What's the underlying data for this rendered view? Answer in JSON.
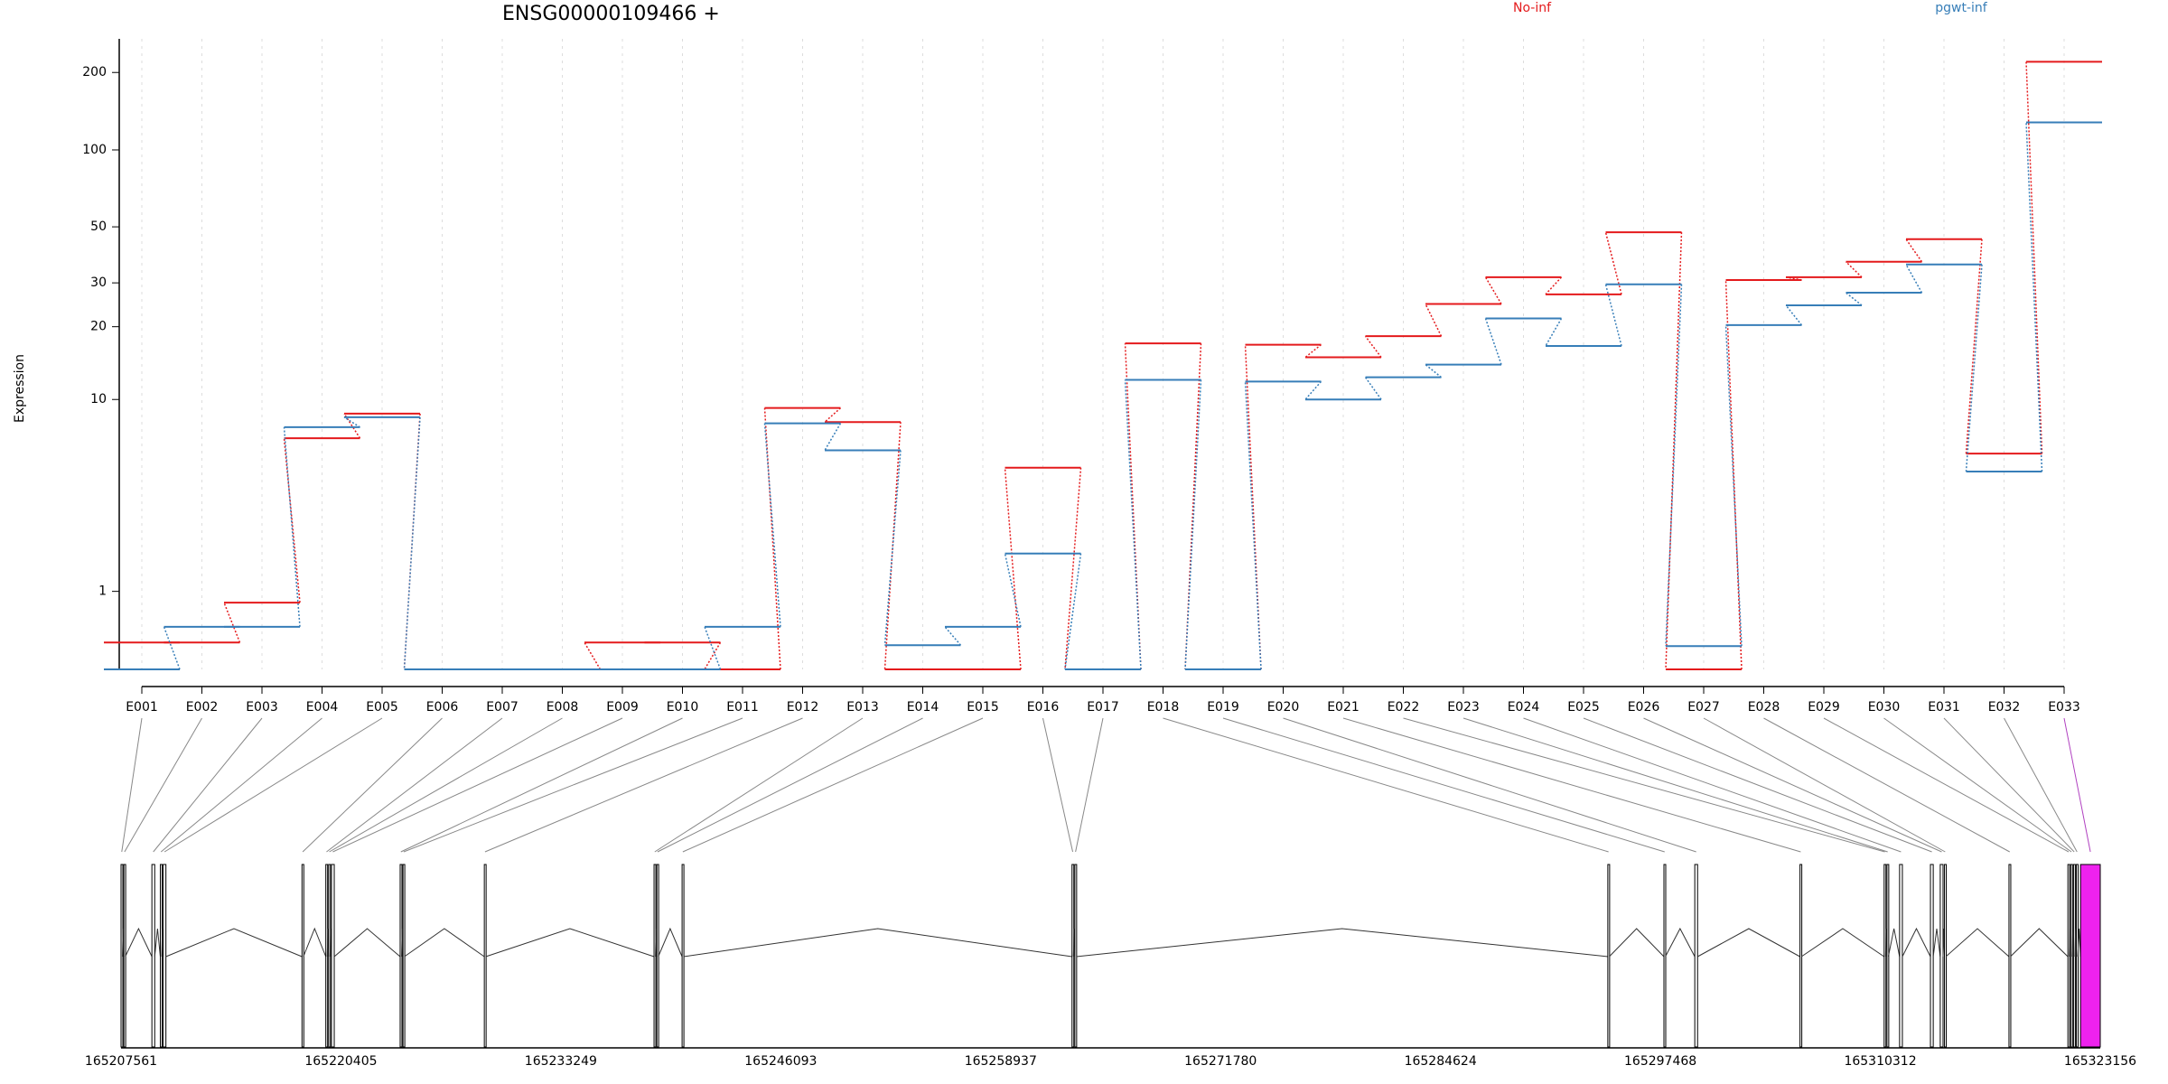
{
  "chart_data": {
    "type": "line",
    "title": "ENSG00000109466 +",
    "y_label": "Expression",
    "yscale": "log1p",
    "categories": [
      "E001",
      "E002",
      "E003",
      "E004",
      "E005",
      "E006",
      "E007",
      "E008",
      "E009",
      "E010",
      "E011",
      "E012",
      "E013",
      "E014",
      "E015",
      "E016",
      "E017",
      "E018",
      "E019",
      "E020",
      "E021",
      "E022",
      "E023",
      "E024",
      "E025",
      "E026",
      "E027",
      "E028",
      "E029",
      "E030",
      "E031",
      "E032",
      "E033"
    ],
    "series": [
      {
        "name": "No-inf",
        "color": "#e41a1c",
        "values": [
          0.27,
          0.27,
          0.81,
          6.8,
          8.7,
          0,
          0,
          0,
          0.27,
          0.27,
          0,
          9.2,
          8.0,
          0,
          0,
          5.0,
          0,
          17.1,
          0,
          16.9,
          15,
          18.3,
          24.7,
          31.6,
          27,
          47.6,
          0,
          30.8,
          31.6,
          36.4,
          44.7,
          5.8,
          220
        ]
      },
      {
        "name": "pgwt-inf",
        "color": "#377eb8",
        "values": [
          0,
          0.46,
          0.46,
          7.6,
          8.4,
          0,
          0,
          0,
          0,
          0,
          0.46,
          7.9,
          6.0,
          0.24,
          0.46,
          1.8,
          0,
          12.1,
          0,
          11.9,
          10,
          12.4,
          14,
          21.6,
          16.7,
          29.6,
          0.23,
          20.3,
          24.4,
          27.4,
          35.5,
          4.8,
          128
        ]
      }
    ],
    "ylim": [
      0,
      270
    ],
    "yticks": [
      1,
      10,
      20,
      30,
      50,
      100,
      200
    ],
    "grid": true,
    "highlight": "E033",
    "highlight_color": "#ee22ee"
  },
  "gene_model": {
    "xlim": [
      165207561,
      165323156
    ],
    "xticks": [
      165207561,
      165220405,
      165233249,
      165246093,
      165258937,
      165271780,
      165284624,
      165297468,
      165310312,
      165323156
    ],
    "exons": [
      [
        165207561,
        165207643
      ],
      [
        165207725,
        165207807
      ],
      [
        165209363,
        165209527
      ],
      [
        165209855,
        165209937
      ],
      [
        165210019,
        165210182
      ],
      [
        165218129,
        165218211
      ],
      [
        165219521,
        165219603
      ],
      [
        165219685,
        165219767
      ],
      [
        165219849,
        165220013
      ],
      [
        165223863,
        165223945
      ],
      [
        165224027,
        165224109
      ],
      [
        165228778,
        165228860
      ],
      [
        165238691,
        165238773
      ],
      [
        165238854,
        165238936
      ],
      [
        165240329,
        165240411
      ],
      [
        165263103,
        165263185
      ],
      [
        165263267,
        165263349
      ],
      [
        165294396,
        165294478
      ],
      [
        165297673,
        165297755
      ],
      [
        165299475,
        165299639
      ],
      [
        165305619,
        165305701
      ],
      [
        165310534,
        165310616
      ],
      [
        165310698,
        165310780
      ],
      [
        165311436,
        165311599
      ],
      [
        165313238,
        165313402
      ],
      [
        165313811,
        165313975
      ],
      [
        165314057,
        165314139
      ],
      [
        165317825,
        165317907
      ],
      [
        165321266,
        165321348
      ],
      [
        165321430,
        165321512
      ],
      [
        165321594,
        165321676
      ],
      [
        165321758,
        165321840
      ],
      [
        165322004,
        165323156
      ]
    ]
  }
}
